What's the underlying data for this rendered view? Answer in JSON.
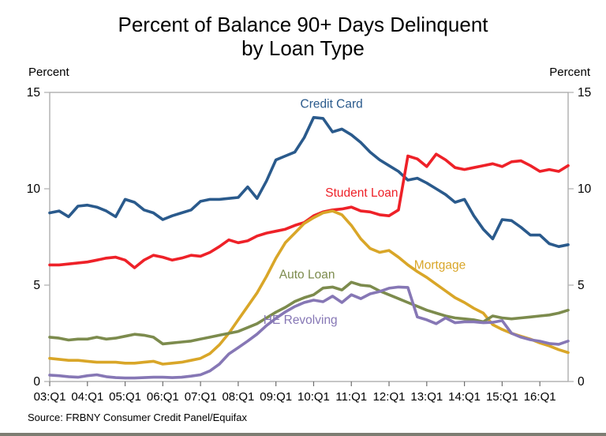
{
  "page": {
    "background": "#ffffff",
    "bottom_border_color": "#7d7d72"
  },
  "header": {
    "title_line1": "Percent of Balance 90+ Days Delinquent",
    "title_line2": "by Loan Type"
  },
  "axes": {
    "left_unit_label": "Percent",
    "right_unit_label": "Percent"
  },
  "footer": {
    "source": "Source: FRBNY Consumer Credit Panel/Equifax"
  },
  "chart_data": {
    "type": "line",
    "title": "Percent of Balance 90+ Days Delinquent by Loan Type",
    "xlabel": "",
    "ylabel": "Percent",
    "ylim": [
      0,
      15
    ],
    "yticks": [
      0,
      5,
      10,
      15
    ],
    "ytick_labels": [
      "0",
      "5",
      "10",
      "15"
    ],
    "grid": "off",
    "legend": "inline-colored-labels",
    "x_unit": "quarter",
    "x_start": "03:Q1",
    "x_end": "16:Q4",
    "x_tick_every_n_quarters": 4,
    "x_tick_labels": [
      "03:Q1",
      "04:Q1",
      "05:Q1",
      "06:Q1",
      "07:Q1",
      "08:Q1",
      "09:Q1",
      "10:Q1",
      "11:Q1",
      "12:Q1",
      "13:Q1",
      "14:Q1",
      "15:Q1",
      "16:Q1"
    ],
    "box_color": "#a8a8a8",
    "side_tick_color": "#b3b3b3",
    "bottom_tick_color": "#6e6e6e",
    "series": [
      {
        "name": "Credit Card",
        "color": "#2a5a8c",
        "label_anchor": {
          "q": 29.9,
          "v": 14.2
        },
        "values": [
          8.75,
          8.85,
          8.55,
          9.1,
          9.15,
          9.05,
          8.85,
          8.55,
          9.45,
          9.3,
          8.9,
          8.75,
          8.4,
          8.6,
          8.75,
          8.9,
          9.35,
          9.45,
          9.45,
          9.5,
          9.55,
          10.1,
          9.5,
          10.4,
          11.5,
          11.7,
          11.9,
          12.65,
          13.7,
          13.65,
          12.95,
          13.1,
          12.8,
          12.4,
          11.9,
          11.5,
          11.2,
          10.9,
          10.45,
          10.55,
          10.3,
          10.0,
          9.7,
          9.3,
          9.45,
          8.6,
          7.9,
          7.4,
          8.4,
          8.35,
          8.0,
          7.6,
          7.6,
          7.15,
          7.0,
          7.1
        ]
      },
      {
        "name": "Student Loan",
        "color": "#ee2128",
        "label_anchor": {
          "q": 33.1,
          "v": 9.6
        },
        "values": [
          6.05,
          6.05,
          6.1,
          6.15,
          6.2,
          6.3,
          6.4,
          6.45,
          6.3,
          5.9,
          6.3,
          6.55,
          6.45,
          6.3,
          6.4,
          6.55,
          6.5,
          6.7,
          7.0,
          7.35,
          7.2,
          7.3,
          7.55,
          7.7,
          7.8,
          7.9,
          8.1,
          8.25,
          8.6,
          8.8,
          8.9,
          8.95,
          9.05,
          8.85,
          8.8,
          8.65,
          8.6,
          8.9,
          11.7,
          11.55,
          11.15,
          11.8,
          11.5,
          11.1,
          11.0,
          11.1,
          11.2,
          11.3,
          11.15,
          11.4,
          11.45,
          11.2,
          10.9,
          11.0,
          10.9,
          11.2
        ]
      },
      {
        "name": "Mortgage",
        "color": "#d9a628",
        "label_anchor": {
          "q": 41.4,
          "v": 5.85
        },
        "values": [
          1.2,
          1.15,
          1.1,
          1.1,
          1.05,
          1.0,
          1.0,
          1.0,
          0.95,
          0.95,
          1.0,
          1.05,
          0.9,
          0.95,
          1.0,
          1.1,
          1.2,
          1.45,
          1.9,
          2.5,
          3.2,
          3.9,
          4.6,
          5.45,
          6.4,
          7.2,
          7.7,
          8.2,
          8.5,
          8.75,
          8.85,
          8.65,
          8.1,
          7.4,
          6.9,
          6.7,
          6.8,
          6.45,
          6.05,
          5.7,
          5.4,
          5.05,
          4.7,
          4.35,
          4.1,
          3.8,
          3.55,
          2.95,
          2.7,
          2.5,
          2.35,
          2.2,
          2.0,
          1.85,
          1.65,
          1.5
        ]
      },
      {
        "name": "Auto Loan",
        "color": "#7c8b4d",
        "label_anchor": {
          "q": 27.3,
          "v": 5.35
        },
        "values": [
          2.3,
          2.25,
          2.15,
          2.2,
          2.2,
          2.3,
          2.2,
          2.25,
          2.35,
          2.45,
          2.4,
          2.3,
          1.95,
          2.0,
          2.05,
          2.1,
          2.2,
          2.3,
          2.4,
          2.5,
          2.6,
          2.8,
          3.0,
          3.3,
          3.6,
          3.85,
          4.15,
          4.35,
          4.5,
          4.85,
          4.9,
          4.75,
          5.15,
          5.0,
          4.95,
          4.7,
          4.5,
          4.3,
          4.1,
          3.9,
          3.7,
          3.55,
          3.4,
          3.3,
          3.25,
          3.2,
          3.1,
          3.4,
          3.3,
          3.25,
          3.3,
          3.35,
          3.4,
          3.45,
          3.55,
          3.7
        ]
      },
      {
        "name": "HE Revolving",
        "color": "#8677b5",
        "label_anchor": {
          "q": 26.6,
          "v": 3.0
        },
        "values": [
          0.33,
          0.3,
          0.25,
          0.22,
          0.3,
          0.35,
          0.25,
          0.2,
          0.18,
          0.18,
          0.2,
          0.22,
          0.22,
          0.2,
          0.22,
          0.28,
          0.35,
          0.55,
          0.9,
          1.43,
          1.76,
          2.1,
          2.46,
          2.9,
          3.28,
          3.61,
          3.89,
          4.1,
          4.22,
          4.14,
          4.43,
          4.1,
          4.5,
          4.3,
          4.55,
          4.67,
          4.84,
          4.9,
          4.88,
          3.35,
          3.2,
          3.0,
          3.3,
          3.05,
          3.1,
          3.1,
          3.05,
          3.07,
          3.16,
          2.5,
          2.3,
          2.17,
          2.09,
          1.97,
          1.93,
          2.1
        ]
      }
    ]
  }
}
